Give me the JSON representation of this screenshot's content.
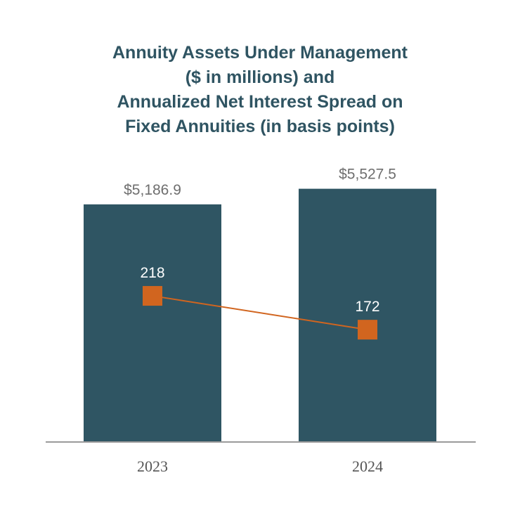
{
  "chart_data": {
    "type": "bar",
    "title_lines": [
      "Annuity Assets Under Management",
      "($ in millions) and",
      "Annualized Net Interest Spread on",
      "Fixed Annuities (in basis points)"
    ],
    "categories": [
      "2023",
      "2024"
    ],
    "series": [
      {
        "type": "bar",
        "values": [
          5186.9,
          5527.5
        ],
        "labels": [
          "$5,186.9",
          "$5,527.5"
        ],
        "color": "#2f5563"
      },
      {
        "type": "line",
        "values": [
          218,
          172
        ],
        "labels": [
          "218",
          "172"
        ],
        "color": "#d1651f"
      }
    ],
    "ylim": [
      0,
      6000
    ],
    "ylim_secondary": [
      0,
      400
    ],
    "grid": false,
    "legend": "none"
  }
}
